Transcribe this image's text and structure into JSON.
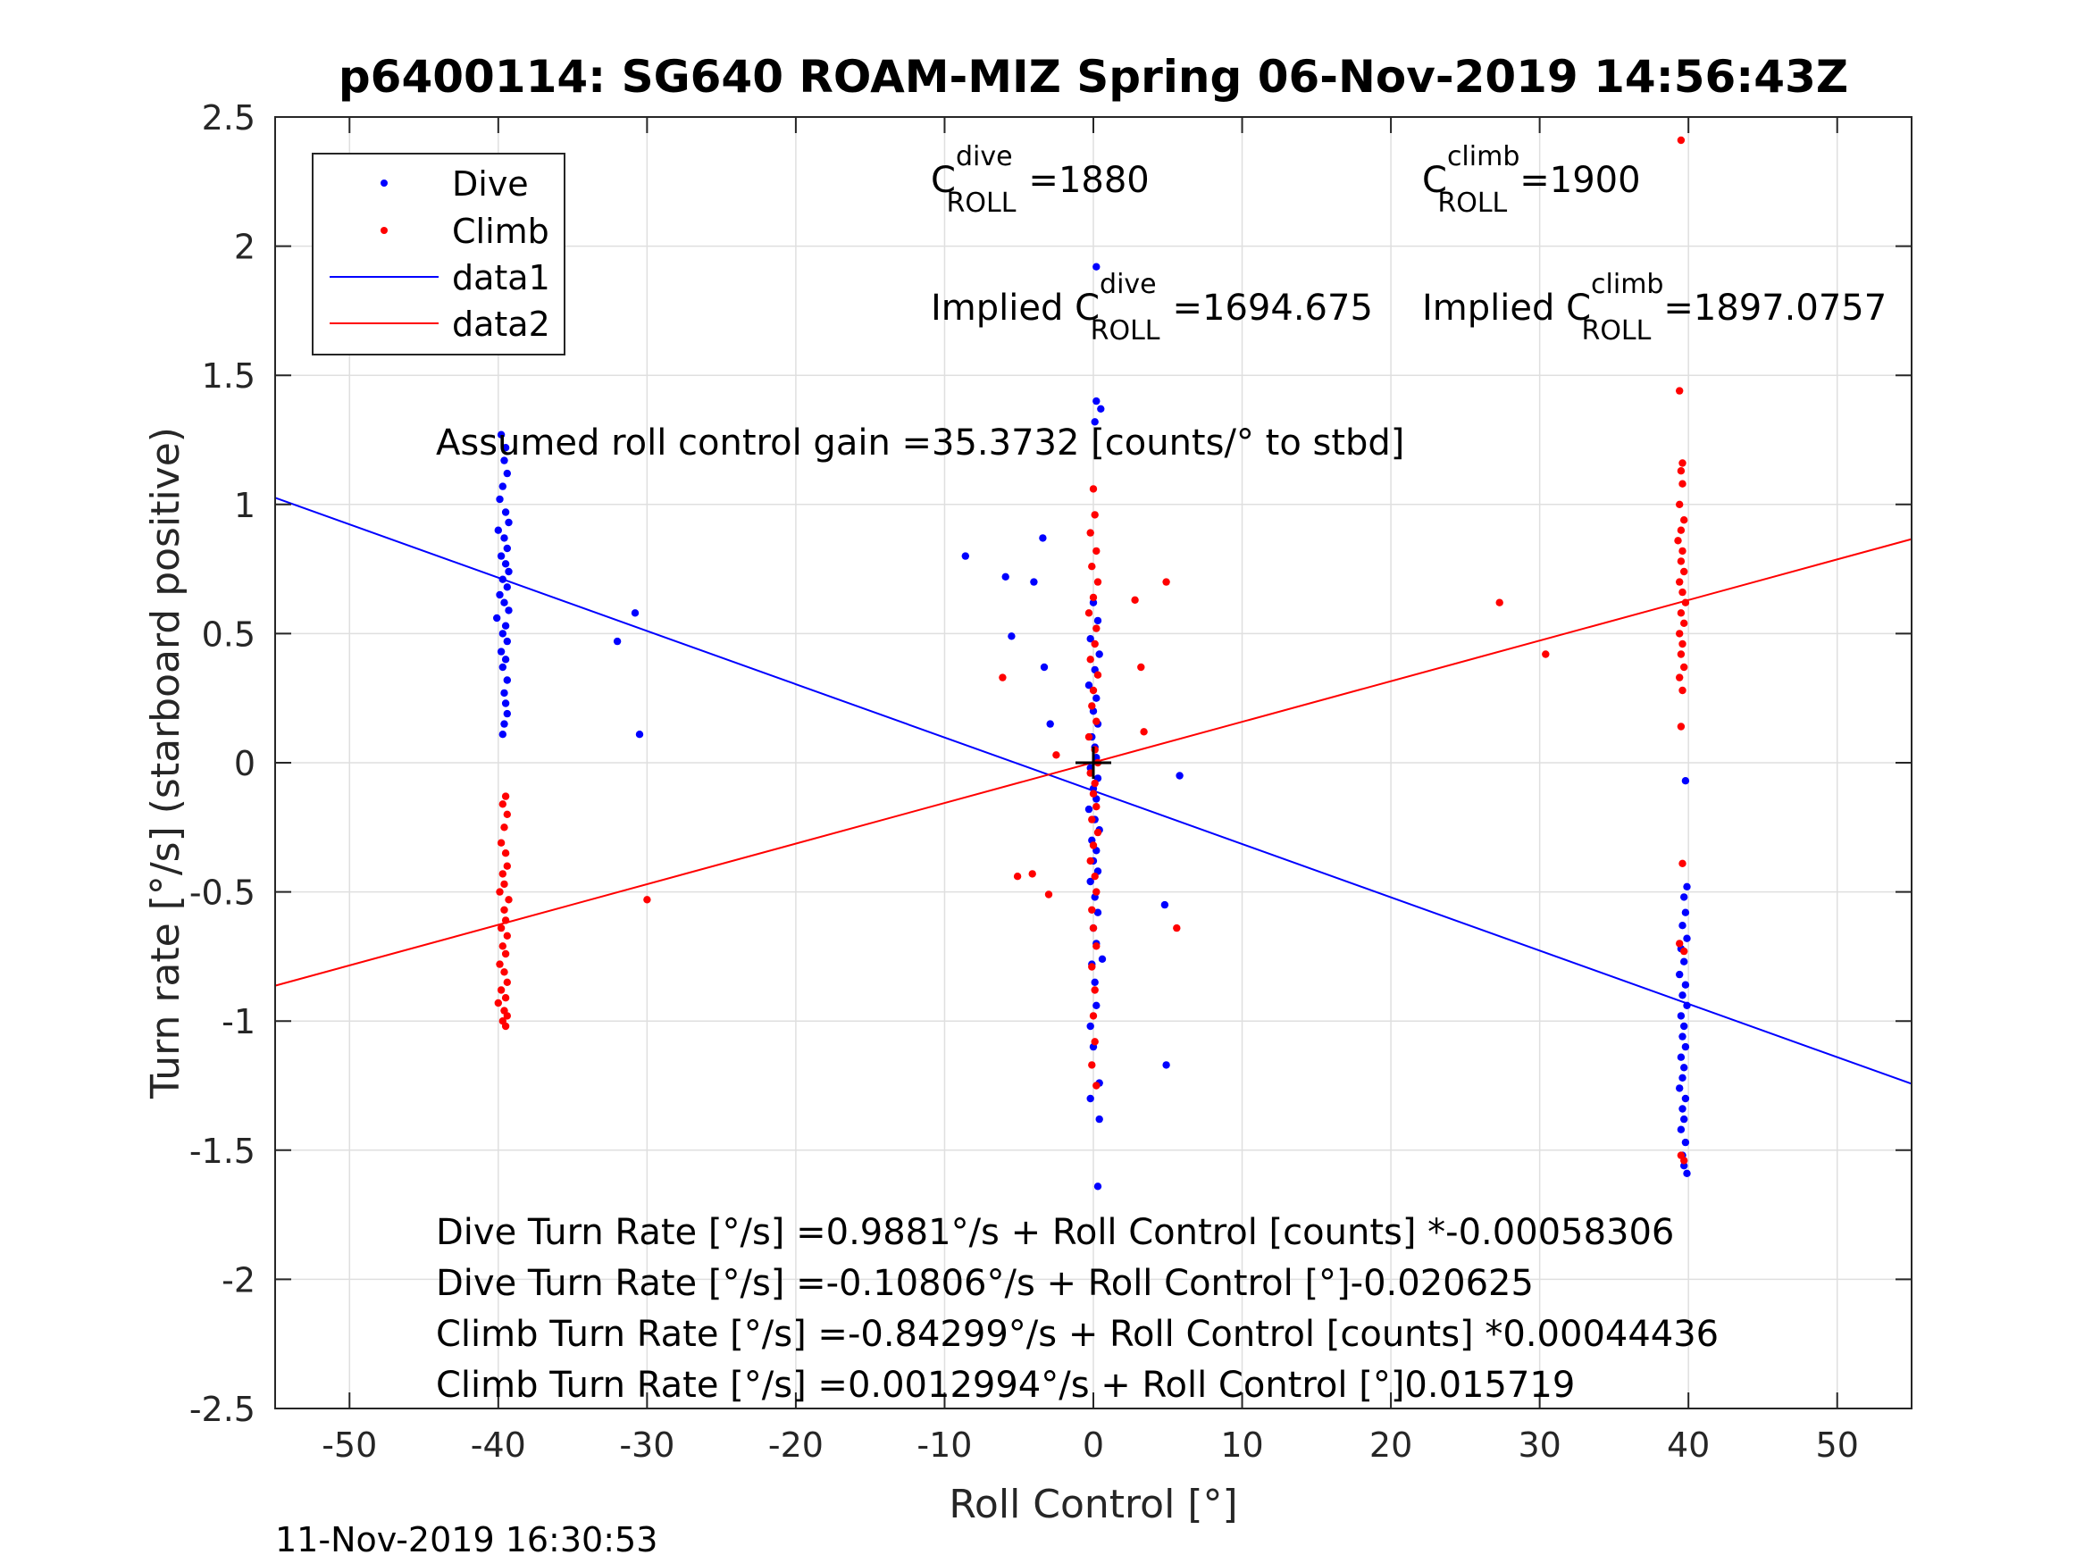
{
  "chart_data": {
    "type": "scatter",
    "title": "p6400114: SG640 ROAM-MIZ Spring 06-Nov-2019 14:56:43Z",
    "xlabel": "Roll Control [°]",
    "ylabel": "Turn rate [°/s] (starboard positive)",
    "xlim": [
      -55,
      55
    ],
    "ylim": [
      -2.5,
      2.5
    ],
    "xticks": [
      -50,
      -40,
      -30,
      -20,
      -10,
      0,
      10,
      20,
      30,
      40,
      50
    ],
    "xtick_labels": [
      "-50",
      "-40",
      "-30",
      "-20",
      "-10",
      "0",
      "10",
      "20",
      "30",
      "40",
      "50"
    ],
    "yticks": [
      -2.5,
      -2,
      -1.5,
      -1,
      -0.5,
      0,
      0.5,
      1,
      1.5,
      2,
      2.5
    ],
    "ytick_labels": [
      "-2.5",
      "-2",
      "-1.5",
      "-1",
      "-0.5",
      "0",
      "0.5",
      "1",
      "1.5",
      "2",
      "2.5"
    ],
    "grid": true,
    "legend_position": "top-left",
    "legend": [
      {
        "label": "Dive",
        "style": "dot",
        "color": "#0000ff"
      },
      {
        "label": "Climb",
        "style": "dot",
        "color": "#ff0000"
      },
      {
        "label": "data1",
        "style": "line",
        "color": "#0000ff"
      },
      {
        "label": "data2",
        "style": "line",
        "color": "#ff0000"
      }
    ],
    "series": [
      {
        "name": "Dive",
        "color": "#0000ff",
        "points": [
          [
            -39.8,
            1.27
          ],
          [
            -39.5,
            1.22
          ],
          [
            -39.6,
            1.17
          ],
          [
            -39.4,
            1.12
          ],
          [
            -39.7,
            1.07
          ],
          [
            -39.9,
            1.02
          ],
          [
            -39.5,
            0.97
          ],
          [
            -39.3,
            0.93
          ],
          [
            -40.0,
            0.9
          ],
          [
            -39.6,
            0.87
          ],
          [
            -39.4,
            0.83
          ],
          [
            -39.8,
            0.8
          ],
          [
            -39.5,
            0.77
          ],
          [
            -39.3,
            0.74
          ],
          [
            -39.7,
            0.71
          ],
          [
            -39.4,
            0.68
          ],
          [
            -39.9,
            0.65
          ],
          [
            -39.6,
            0.62
          ],
          [
            -39.3,
            0.59
          ],
          [
            -40.1,
            0.56
          ],
          [
            -39.5,
            0.53
          ],
          [
            -39.7,
            0.5
          ],
          [
            -39.4,
            0.47
          ],
          [
            -39.8,
            0.43
          ],
          [
            -39.5,
            0.4
          ],
          [
            -39.7,
            0.37
          ],
          [
            -39.4,
            0.32
          ],
          [
            -39.6,
            0.27
          ],
          [
            -39.5,
            0.23
          ],
          [
            -39.4,
            0.19
          ],
          [
            -39.6,
            0.15
          ],
          [
            -39.7,
            0.11
          ],
          [
            -32.0,
            0.47
          ],
          [
            -30.8,
            0.58
          ],
          [
            -30.5,
            0.11
          ],
          [
            -8.6,
            0.8
          ],
          [
            -5.9,
            0.72
          ],
          [
            -5.5,
            0.49
          ],
          [
            -4.0,
            0.7
          ],
          [
            -3.4,
            0.87
          ],
          [
            -3.3,
            0.37
          ],
          [
            -2.9,
            0.15
          ],
          [
            0.2,
            1.92
          ],
          [
            0.2,
            1.4
          ],
          [
            0.5,
            1.37
          ],
          [
            0.1,
            1.32
          ],
          [
            0.0,
            0.62
          ],
          [
            0.3,
            0.55
          ],
          [
            -0.2,
            0.48
          ],
          [
            0.4,
            0.42
          ],
          [
            0.1,
            0.36
          ],
          [
            -0.3,
            0.3
          ],
          [
            0.2,
            0.25
          ],
          [
            0.0,
            0.2
          ],
          [
            0.3,
            0.15
          ],
          [
            -0.1,
            0.1
          ],
          [
            0.1,
            0.06
          ],
          [
            0.2,
            0.02
          ],
          [
            -0.2,
            -0.02
          ],
          [
            0.3,
            -0.06
          ],
          [
            0.0,
            -0.1
          ],
          [
            0.2,
            -0.14
          ],
          [
            -0.3,
            -0.18
          ],
          [
            0.1,
            -0.22
          ],
          [
            0.4,
            -0.26
          ],
          [
            -0.1,
            -0.3
          ],
          [
            0.2,
            -0.34
          ],
          [
            0.0,
            -0.38
          ],
          [
            0.3,
            -0.42
          ],
          [
            -0.2,
            -0.46
          ],
          [
            0.1,
            -0.52
          ],
          [
            0.3,
            -0.58
          ],
          [
            0.0,
            -0.64
          ],
          [
            0.2,
            -0.7
          ],
          [
            -0.1,
            -0.78
          ],
          [
            0.1,
            -0.85
          ],
          [
            0.2,
            -0.94
          ],
          [
            -0.2,
            -1.02
          ],
          [
            0.0,
            -1.1
          ],
          [
            0.4,
            -1.24
          ],
          [
            -0.2,
            -1.3
          ],
          [
            0.4,
            -1.38
          ],
          [
            0.3,
            -1.64
          ],
          [
            0.6,
            -0.76
          ],
          [
            5.8,
            -0.05
          ],
          [
            4.8,
            -0.55
          ],
          [
            4.9,
            -1.17
          ],
          [
            39.8,
            -0.07
          ],
          [
            39.9,
            -0.48
          ],
          [
            39.7,
            -0.52
          ],
          [
            39.8,
            -0.58
          ],
          [
            39.6,
            -0.63
          ],
          [
            39.9,
            -0.68
          ],
          [
            39.5,
            -0.72
          ],
          [
            39.7,
            -0.77
          ],
          [
            39.4,
            -0.82
          ],
          [
            39.8,
            -0.86
          ],
          [
            39.6,
            -0.9
          ],
          [
            39.9,
            -0.94
          ],
          [
            39.5,
            -0.98
          ],
          [
            39.7,
            -1.02
          ],
          [
            39.6,
            -1.06
          ],
          [
            39.8,
            -1.1
          ],
          [
            39.5,
            -1.14
          ],
          [
            39.7,
            -1.18
          ],
          [
            39.6,
            -1.22
          ],
          [
            39.4,
            -1.26
          ],
          [
            39.8,
            -1.3
          ],
          [
            39.6,
            -1.34
          ],
          [
            39.7,
            -1.38
          ],
          [
            39.5,
            -1.42
          ],
          [
            39.8,
            -1.47
          ],
          [
            39.6,
            -1.52
          ],
          [
            39.7,
            -1.56
          ],
          [
            39.9,
            -1.59
          ]
        ]
      },
      {
        "name": "Climb",
        "color": "#ff0000",
        "points": [
          [
            -39.5,
            -0.13
          ],
          [
            -39.7,
            -0.16
          ],
          [
            -39.4,
            -0.2
          ],
          [
            -39.6,
            -0.25
          ],
          [
            -39.8,
            -0.31
          ],
          [
            -39.5,
            -0.35
          ],
          [
            -39.4,
            -0.4
          ],
          [
            -39.7,
            -0.43
          ],
          [
            -39.6,
            -0.47
          ],
          [
            -39.9,
            -0.5
          ],
          [
            -39.3,
            -0.53
          ],
          [
            -39.6,
            -0.57
          ],
          [
            -39.5,
            -0.61
          ],
          [
            -39.8,
            -0.64
          ],
          [
            -39.4,
            -0.67
          ],
          [
            -39.7,
            -0.71
          ],
          [
            -39.5,
            -0.74
          ],
          [
            -39.9,
            -0.78
          ],
          [
            -39.6,
            -0.81
          ],
          [
            -39.4,
            -0.85
          ],
          [
            -39.8,
            -0.88
          ],
          [
            -39.5,
            -0.91
          ],
          [
            -40.0,
            -0.93
          ],
          [
            -39.6,
            -0.96
          ],
          [
            -39.4,
            -0.98
          ],
          [
            -39.7,
            -1.0
          ],
          [
            -39.5,
            -1.02
          ],
          [
            -30.0,
            -0.53
          ],
          [
            -6.1,
            0.33
          ],
          [
            -5.1,
            -0.44
          ],
          [
            -4.1,
            -0.43
          ],
          [
            -3.0,
            -0.51
          ],
          [
            -2.5,
            0.03
          ],
          [
            0.0,
            1.06
          ],
          [
            0.1,
            0.96
          ],
          [
            -0.2,
            0.89
          ],
          [
            0.2,
            0.82
          ],
          [
            -0.1,
            0.76
          ],
          [
            0.3,
            0.7
          ],
          [
            0.0,
            0.64
          ],
          [
            -0.3,
            0.58
          ],
          [
            0.2,
            0.52
          ],
          [
            0.1,
            0.46
          ],
          [
            -0.2,
            0.4
          ],
          [
            0.3,
            0.34
          ],
          [
            0.0,
            0.28
          ],
          [
            -0.1,
            0.22
          ],
          [
            0.2,
            0.16
          ],
          [
            -0.3,
            0.1
          ],
          [
            0.1,
            0.05
          ],
          [
            0.3,
            0.0
          ],
          [
            -0.2,
            -0.04
          ],
          [
            0.1,
            -0.08
          ],
          [
            0.0,
            -0.12
          ],
          [
            0.2,
            -0.17
          ],
          [
            -0.1,
            -0.22
          ],
          [
            0.3,
            -0.27
          ],
          [
            0.0,
            -0.32
          ],
          [
            -0.2,
            -0.38
          ],
          [
            0.1,
            -0.44
          ],
          [
            0.2,
            -0.5
          ],
          [
            -0.1,
            -0.57
          ],
          [
            0.0,
            -0.64
          ],
          [
            0.2,
            -0.71
          ],
          [
            -0.1,
            -0.79
          ],
          [
            0.1,
            -0.88
          ],
          [
            0.0,
            -0.98
          ],
          [
            0.1,
            -1.08
          ],
          [
            -0.1,
            -1.17
          ],
          [
            0.2,
            -1.25
          ],
          [
            2.8,
            0.63
          ],
          [
            3.2,
            0.37
          ],
          [
            3.4,
            0.12
          ],
          [
            4.9,
            0.7
          ],
          [
            5.6,
            -0.64
          ],
          [
            27.3,
            0.62
          ],
          [
            30.4,
            0.42
          ],
          [
            39.5,
            2.41
          ],
          [
            39.4,
            1.44
          ],
          [
            39.6,
            1.16
          ],
          [
            39.5,
            1.13
          ],
          [
            39.6,
            1.08
          ],
          [
            39.4,
            1.0
          ],
          [
            39.7,
            0.94
          ],
          [
            39.5,
            0.9
          ],
          [
            39.3,
            0.86
          ],
          [
            39.6,
            0.82
          ],
          [
            39.5,
            0.78
          ],
          [
            39.7,
            0.74
          ],
          [
            39.4,
            0.7
          ],
          [
            39.6,
            0.66
          ],
          [
            39.8,
            0.62
          ],
          [
            39.5,
            0.58
          ],
          [
            39.7,
            0.54
          ],
          [
            39.4,
            0.5
          ],
          [
            39.6,
            0.46
          ],
          [
            39.5,
            0.42
          ],
          [
            39.7,
            0.37
          ],
          [
            39.4,
            0.33
          ],
          [
            39.6,
            0.28
          ],
          [
            39.5,
            0.14
          ],
          [
            39.6,
            -0.39
          ],
          [
            39.4,
            -0.7
          ],
          [
            39.7,
            -0.73
          ],
          [
            39.5,
            -1.52
          ],
          [
            39.7,
            -1.54
          ]
        ]
      }
    ],
    "fit_lines": [
      {
        "name": "data1",
        "color": "#0000ff",
        "x": [
          -55,
          55
        ],
        "y": [
          1.026,
          -1.243
        ]
      },
      {
        "name": "data2",
        "color": "#ff0000",
        "x": [
          -55,
          55
        ],
        "y": [
          -0.8632,
          0.8658
        ]
      }
    ],
    "origin_marker": {
      "x": 0,
      "y": 0,
      "symbol": "+"
    }
  },
  "annotations": {
    "c_roll_dive": {
      "base": "C",
      "sup": "dive",
      "sub": "ROLL",
      "value": "=1880"
    },
    "c_roll_climb": {
      "base": "C",
      "sup": "climb",
      "sub": "ROLL",
      "value": "=1900"
    },
    "implied_dive": {
      "prefix": "Implied C",
      "sup": "dive",
      "sub": "ROLL",
      "value": "=1694.675"
    },
    "implied_climb": {
      "prefix": "Implied C",
      "sup": "climb",
      "sub": "ROLL",
      "value": "=1897.0757"
    },
    "gain": "Assumed roll control gain =35.3732 [counts/° to stbd]",
    "equations": [
      "Dive Turn Rate [°/s] =0.9881°/s + Roll Control [counts] *-0.00058306",
      "Dive Turn Rate [°/s] =-0.10806°/s + Roll Control [°]-0.020625",
      "Climb Turn Rate [°/s] =-0.84299°/s + Roll Control [counts] *0.00044436",
      "Climb Turn Rate [°/s] =0.0012994°/s + Roll Control [°]0.015719"
    ]
  },
  "footer": {
    "timestamp": "11-Nov-2019 16:30:53"
  }
}
